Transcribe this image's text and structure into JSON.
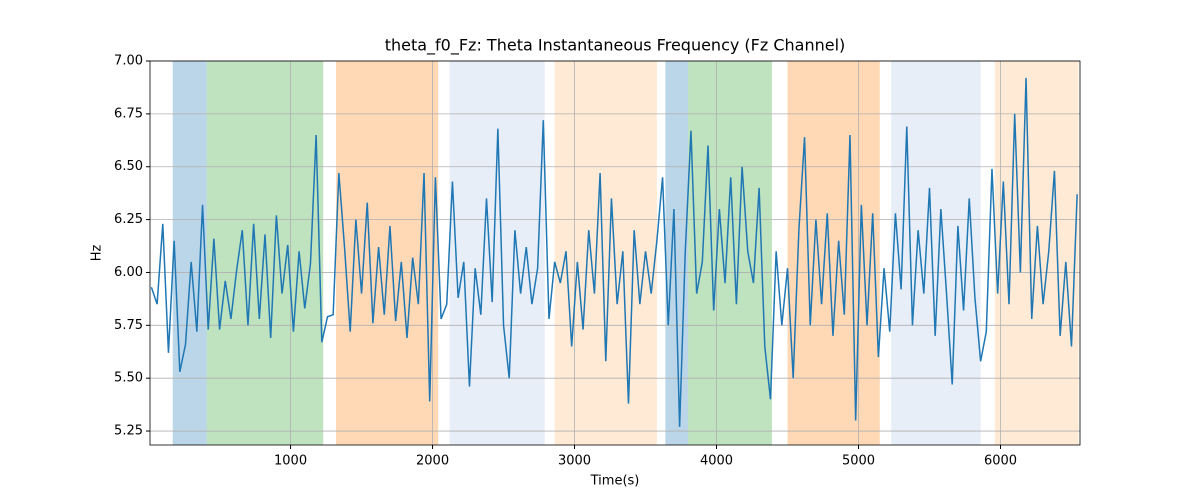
{
  "chart_data": {
    "type": "line",
    "title": "theta_f0_Fz: Theta Instantaneous Frequency (Fz Channel)",
    "xlabel": "Time(s)",
    "ylabel": "Hz",
    "xlim": [
      10,
      6560
    ],
    "ylim": [
      5.184,
      7.0
    ],
    "xticks": [
      1000,
      2000,
      3000,
      4000,
      5000,
      6000
    ],
    "yticks": [
      5.25,
      {
        "value": 5.5,
        "label": "5.50"
      },
      5.75,
      {
        "value": 6.0,
        "label": "6.00"
      },
      6.25,
      {
        "value": 6.5,
        "label": "6.50"
      },
      6.75,
      {
        "value": 7.0,
        "label": "7.00"
      }
    ],
    "grid": true,
    "bands": [
      {
        "start": 170,
        "end": 410,
        "color": "#1f77b4"
      },
      {
        "start": 410,
        "end": 1230,
        "color": "#2ca02c"
      },
      {
        "start": 1320,
        "end": 2040,
        "color": "#ff7f0e"
      },
      {
        "start": 2120,
        "end": 2790,
        "color": "#aec7e8"
      },
      {
        "start": 2860,
        "end": 3580,
        "color": "#ffbb78"
      },
      {
        "start": 3640,
        "end": 3800,
        "color": "#1f77b4"
      },
      {
        "start": 3800,
        "end": 4390,
        "color": "#2ca02c"
      },
      {
        "start": 4500,
        "end": 5150,
        "color": "#ff7f0e"
      },
      {
        "start": 5230,
        "end": 5860,
        "color": "#aec7e8"
      },
      {
        "start": 5960,
        "end": 6550,
        "color": "#ffbb78"
      }
    ],
    "x": [
      20,
      60,
      100,
      140,
      180,
      220,
      260,
      300,
      340,
      380,
      420,
      460,
      500,
      540,
      580,
      620,
      660,
      700,
      740,
      780,
      820,
      860,
      900,
      940,
      980,
      1020,
      1060,
      1100,
      1140,
      1180,
      1220,
      1260,
      1300,
      1340,
      1380,
      1420,
      1460,
      1500,
      1540,
      1580,
      1620,
      1660,
      1700,
      1740,
      1780,
      1820,
      1860,
      1900,
      1940,
      1980,
      2020,
      2060,
      2100,
      2140,
      2180,
      2220,
      2260,
      2300,
      2340,
      2380,
      2420,
      2460,
      2500,
      2540,
      2580,
      2620,
      2660,
      2700,
      2740,
      2780,
      2820,
      2860,
      2900,
      2940,
      2980,
      3020,
      3060,
      3100,
      3140,
      3180,
      3220,
      3260,
      3300,
      3340,
      3380,
      3420,
      3460,
      3500,
      3540,
      3580,
      3620,
      3660,
      3700,
      3740,
      3780,
      3820,
      3860,
      3900,
      3940,
      3980,
      4020,
      4060,
      4100,
      4140,
      4180,
      4220,
      4260,
      4300,
      4340,
      4380,
      4420,
      4460,
      4500,
      4540,
      4580,
      4620,
      4660,
      4700,
      4740,
      4780,
      4820,
      4860,
      4900,
      4940,
      4980,
      5020,
      5060,
      5100,
      5140,
      5180,
      5220,
      5260,
      5300,
      5340,
      5380,
      5420,
      5460,
      5500,
      5540,
      5580,
      5620,
      5660,
      5700,
      5740,
      5780,
      5820,
      5860,
      5900,
      5940,
      5980,
      6020,
      6060,
      6100,
      6140,
      6180,
      6220,
      6260,
      6300,
      6340,
      6380,
      6420,
      6460,
      6500,
      6540
    ],
    "series": [
      {
        "color": "#1f77b4",
        "values": [
          5.93,
          5.85,
          6.23,
          5.62,
          6.15,
          5.53,
          5.66,
          6.05,
          5.72,
          6.32,
          5.73,
          6.16,
          5.73,
          5.96,
          5.78,
          6.01,
          6.2,
          5.75,
          6.23,
          5.78,
          6.18,
          5.69,
          6.27,
          5.9,
          6.13,
          5.72,
          6.1,
          5.83,
          6.04,
          6.65,
          5.67,
          5.79,
          5.8,
          6.47,
          6.12,
          5.72,
          6.25,
          5.9,
          6.33,
          5.76,
          6.12,
          5.8,
          6.22,
          5.77,
          6.05,
          5.69,
          6.07,
          5.85,
          6.47,
          5.39,
          6.45,
          5.78,
          5.85,
          6.43,
          5.88,
          6.05,
          5.46,
          6.02,
          5.8,
          6.35,
          5.86,
          6.68,
          5.75,
          5.5,
          6.2,
          5.9,
          6.12,
          5.85,
          6.02,
          6.72,
          5.78,
          6.05,
          5.95,
          6.1,
          5.65,
          6.05,
          5.73,
          6.2,
          5.9,
          6.47,
          5.58,
          6.35,
          5.85,
          6.1,
          5.38,
          6.2,
          5.85,
          6.1,
          5.9,
          6.15,
          6.45,
          5.75,
          6.3,
          5.27,
          6.1,
          6.67,
          5.9,
          6.05,
          6.6,
          5.82,
          6.3,
          5.95,
          6.45,
          5.85,
          6.5,
          6.1,
          5.95,
          6.4,
          5.65,
          5.4,
          6.1,
          5.75,
          6.02,
          5.5,
          6.2,
          6.64,
          5.75,
          6.25,
          5.85,
          6.28,
          5.7,
          6.15,
          5.8,
          6.65,
          5.3,
          6.32,
          5.75,
          6.28,
          5.6,
          6.02,
          5.72,
          6.28,
          5.92,
          6.69,
          5.75,
          6.2,
          5.9,
          6.4,
          5.7,
          6.3,
          5.9,
          5.47,
          6.22,
          5.82,
          6.35,
          5.88,
          5.58,
          5.72,
          6.49,
          5.9,
          6.43,
          5.85,
          6.75,
          6.0,
          6.92,
          5.78,
          6.22,
          5.85,
          6.1,
          6.48,
          5.7,
          6.05,
          5.65,
          6.37
        ]
      }
    ]
  }
}
